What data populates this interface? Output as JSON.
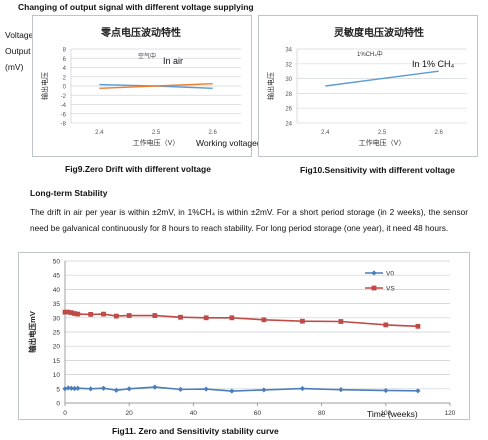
{
  "header": {
    "title": "Changing of output signal with different voltage supplying"
  },
  "side_label": {
    "line1": "Voltage",
    "line2": "Output",
    "line3": "(mV)"
  },
  "chart_data": [
    {
      "type": "line",
      "title": "零点电压波动特性",
      "xlabel": "工作电压（V）",
      "ylabel": "输出电压",
      "xlabel_en": "Working voltage(V)",
      "x": [
        2.4,
        2.5,
        2.6
      ],
      "xlim": [
        2.35,
        2.65
      ],
      "xticks": [
        "2.4",
        "2.5",
        "2.6"
      ],
      "ylim": [
        -8,
        8
      ],
      "yticks": [
        "-8",
        "-6",
        "-4",
        "-2",
        "0",
        "2",
        "4",
        "6",
        "8"
      ],
      "grid": true,
      "annotation_cn": "空气中",
      "annotation_en": "In air",
      "series": [
        {
          "values": [
            0.3,
            0.0,
            -0.5
          ],
          "color": "#5b9bd5"
        },
        {
          "values": [
            -0.5,
            0.0,
            0.5
          ],
          "color": "#ed7d31"
        }
      ]
    },
    {
      "type": "line",
      "title": "灵敏度电压波动特性",
      "xlabel": "工作电压（V）",
      "ylabel": "输出电压",
      "x": [
        2.4,
        2.5,
        2.6
      ],
      "xlim": [
        2.35,
        2.65
      ],
      "xticks": [
        "2.4",
        "2.5",
        "2.6"
      ],
      "ylim": [
        24,
        34
      ],
      "yticks": [
        "24",
        "26",
        "28",
        "30",
        "32",
        "34"
      ],
      "grid": true,
      "annotation_cn": "1%CH₄中",
      "annotation_en": "In 1% CH₄",
      "series": [
        {
          "values": [
            29.0,
            30.0,
            31.0
          ],
          "color": "#5b9bd5"
        }
      ]
    },
    {
      "type": "line",
      "ylabel": "输出电压mV",
      "xlabel": "Time (weeks)",
      "xlim": [
        0,
        120
      ],
      "xticks": [
        "0",
        "20",
        "40",
        "60",
        "80",
        "100",
        "120"
      ],
      "ylim": [
        0,
        50
      ],
      "yticks": [
        "0",
        "5",
        "10",
        "15",
        "20",
        "25",
        "30",
        "35",
        "40",
        "45",
        "50"
      ],
      "grid": true,
      "legend": "right",
      "series": [
        {
          "name": "V0",
          "color": "#4a7ebb",
          "x": [
            0,
            1,
            2,
            3,
            4,
            8,
            12,
            16,
            20,
            28,
            36,
            44,
            52,
            62,
            74,
            86,
            100,
            110
          ],
          "values": [
            5.0,
            5.3,
            5.2,
            5.1,
            5.2,
            5.0,
            5.2,
            4.5,
            5.0,
            5.6,
            4.8,
            4.9,
            4.2,
            4.6,
            5.1,
            4.7,
            4.4,
            4.3
          ]
        },
        {
          "name": "VS",
          "color": "#be4b48",
          "x": [
            0,
            1,
            2,
            3,
            4,
            8,
            12,
            16,
            20,
            28,
            36,
            44,
            52,
            62,
            74,
            86,
            100,
            110
          ],
          "values": [
            32.0,
            32.0,
            31.8,
            31.5,
            31.3,
            31.2,
            31.3,
            30.6,
            30.8,
            30.8,
            30.2,
            30.0,
            30.0,
            29.3,
            28.8,
            28.7,
            27.5,
            27.0
          ]
        }
      ]
    }
  ],
  "captions": {
    "fig9": "Fig9.Zero Drift with different voltage",
    "fig10": "Fig10.Sensitivity with different voltage",
    "fig11": "Fig11. Zero and Sensitivity stability curve"
  },
  "section": {
    "heading": "Long-term Stability",
    "paragraph": "The drift in air per year is within ±2mV, in 1%CH₄ is within ±2mV. For a short period storage (in 2 weeks), the sensor need be galvanical continuously for 8 hours to reach stability. For long period storage (one year), it need 48 hours."
  }
}
